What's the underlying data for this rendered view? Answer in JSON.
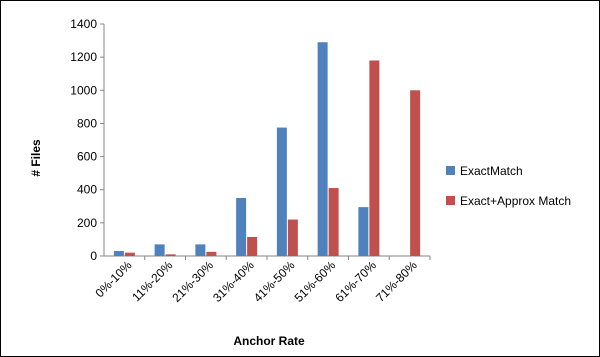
{
  "chart_data": {
    "type": "bar",
    "categories": [
      "0%-10%",
      "11%-20%",
      "21%-30%",
      "31%-40%",
      "41%-50%",
      "51%-60%",
      "61%-70%",
      "71%-80%"
    ],
    "series": [
      {
        "name": "ExactMatch",
        "color": "#4f81bd",
        "values": [
          30,
          70,
          70,
          350,
          775,
          1290,
          295,
          0
        ]
      },
      {
        "name": "Exact+Approx Match",
        "color": "#c0504d",
        "values": [
          20,
          10,
          25,
          115,
          220,
          410,
          1180,
          1000
        ]
      }
    ],
    "xlabel": "Anchor Rate",
    "ylabel": "# Files",
    "ylim": [
      0,
      1400
    ],
    "yticks": [
      0,
      200,
      400,
      600,
      800,
      1000,
      1200,
      1400
    ],
    "grid": false,
    "legend": "right"
  }
}
